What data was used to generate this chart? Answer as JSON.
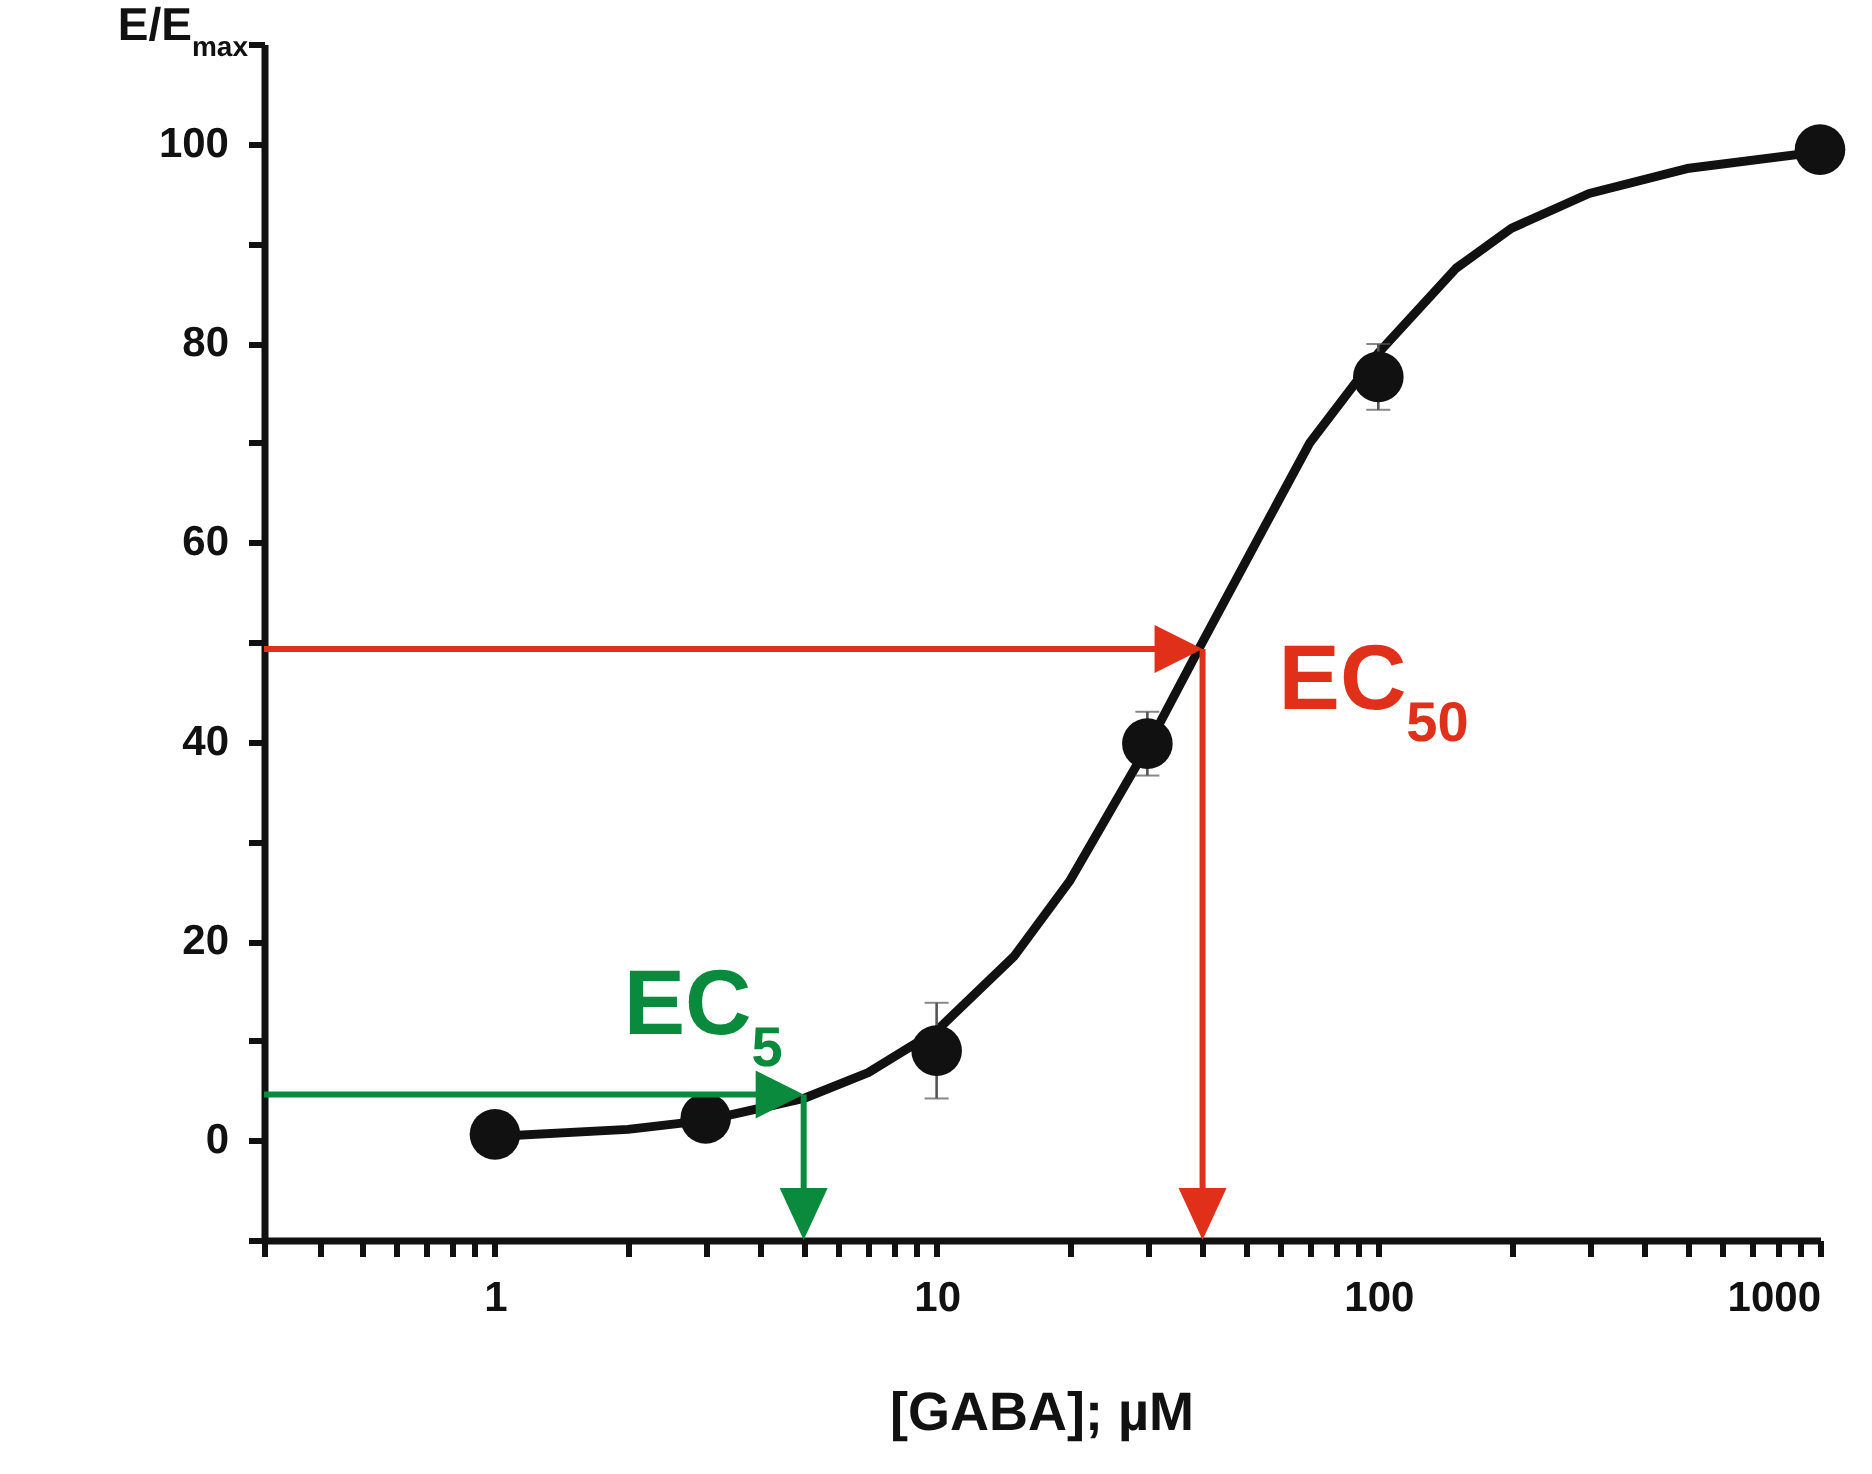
{
  "chart_data": {
    "type": "scatter",
    "xlabel": "[GABA]; µM",
    "ylabel": "E/E$_{max}$",
    "log": "x",
    "grid": false,
    "marker": "circle",
    "xlim": [
      0.3,
      1000
    ],
    "ylim": [
      -10,
      110
    ],
    "xticks": [
      {
        "value": 0.3,
        "label": null
      },
      {
        "value": 0.4,
        "label": null
      },
      {
        "value": 0.5,
        "label": null
      },
      {
        "value": 0.6,
        "label": null
      },
      {
        "value": 0.7,
        "label": null
      },
      {
        "value": 0.8,
        "label": null
      },
      {
        "value": 0.9,
        "label": null
      },
      1,
      {
        "value": 2,
        "label": null
      },
      {
        "value": 3,
        "label": null
      },
      {
        "value": 4,
        "label": null
      },
      {
        "value": 5,
        "label": null
      },
      {
        "value": 6,
        "label": null
      },
      {
        "value": 7,
        "label": null
      },
      {
        "value": 8,
        "label": null
      },
      {
        "value": 9,
        "label": null
      },
      10,
      {
        "value": 20,
        "label": null
      },
      {
        "value": 30,
        "label": null
      },
      {
        "value": 40,
        "label": null
      },
      {
        "value": 50,
        "label": null
      },
      {
        "value": 60,
        "label": null
      },
      {
        "value": 70,
        "label": null
      },
      {
        "value": 80,
        "label": null
      },
      {
        "value": 90,
        "label": null
      },
      100,
      {
        "value": 200,
        "label": null
      },
      {
        "value": 300,
        "label": null
      },
      {
        "value": 400,
        "label": null
      },
      {
        "value": 500,
        "label": null
      },
      {
        "value": 600,
        "label": null
      },
      {
        "value": 700,
        "label": null
      },
      {
        "value": 800,
        "label": null
      },
      {
        "value": 900,
        "label": null
      },
      1000
    ],
    "yticks": [
      {
        "value": -10,
        "label": null
      },
      0,
      {
        "value": 10,
        "label": null
      },
      20,
      {
        "value": 30,
        "label": null
      },
      40,
      {
        "value": 50,
        "label": null
      },
      60,
      {
        "value": 70,
        "label": null
      },
      80,
      {
        "value": 90,
        "label": null
      },
      100,
      {
        "value": 110,
        "label": null
      }
    ],
    "series": [
      {
        "type": "line",
        "color": "#111111",
        "line_style": "solid",
        "marker": "none",
        "x": [
          1,
          2,
          3,
          5,
          7,
          10,
          15,
          20,
          30,
          40,
          50,
          70,
          100,
          150,
          200,
          300,
          500,
          1000
        ],
        "values": [
          0.4,
          1.1,
          2,
          4.2,
          6.8,
          11,
          18.5,
          26,
          39.5,
          50,
          58,
          70,
          79,
          87.5,
          91.5,
          95,
          97.5,
          99.2
        ]
      },
      {
        "type": "scatter",
        "color": "#111111",
        "x": [
          1,
          3,
          10,
          30,
          100,
          1000
        ],
        "values": [
          0.6,
          2.2,
          9,
          39.8,
          76.6,
          99.4
        ],
        "errors": [
          null,
          null,
          4.8,
          3.2,
          3.3,
          null
        ]
      }
    ],
    "annotations": [
      {
        "text": "EC$_{5}$",
        "x": 5,
        "y": 4.6
      },
      {
        "text": "EC$_{50}$",
        "x": 40,
        "y": 49.3
      }
    ]
  }
}
